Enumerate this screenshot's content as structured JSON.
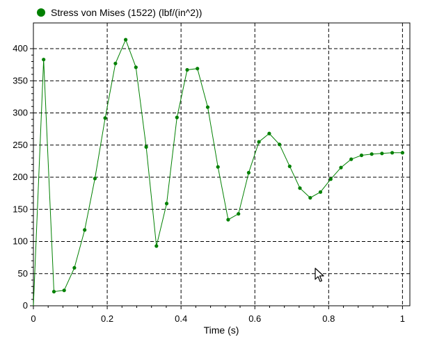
{
  "chart_data": {
    "type": "line",
    "xlabel": "Time (s)",
    "ylabel": "",
    "xlim": [
      0,
      1.02
    ],
    "ylim": [
      0,
      440
    ],
    "x_ticks": [
      0,
      0.2,
      0.4,
      0.6,
      0.8,
      1
    ],
    "x_tick_labels": [
      "0",
      "0.2",
      "0.4",
      "0.6",
      "0.8",
      "1"
    ],
    "y_ticks": [
      0,
      50,
      100,
      150,
      200,
      250,
      300,
      350,
      400
    ],
    "y_tick_labels": [
      "0",
      "50",
      "100",
      "150",
      "200",
      "250",
      "300",
      "350",
      "400"
    ],
    "grid": true,
    "legend_position": "top-left",
    "series": [
      {
        "name": "Stress von Mises (1522) (lbf/(in^2))",
        "color": "#008000",
        "x": [
          0,
          0.0278,
          0.0556,
          0.0833,
          0.1111,
          0.1389,
          0.1667,
          0.1944,
          0.2222,
          0.25,
          0.2778,
          0.3056,
          0.3333,
          0.3611,
          0.3889,
          0.4167,
          0.4444,
          0.4722,
          0.5,
          0.5278,
          0.5556,
          0.5833,
          0.6111,
          0.6389,
          0.6667,
          0.6944,
          0.7222,
          0.75,
          0.7778,
          0.8056,
          0.8333,
          0.8611,
          0.8889,
          0.9167,
          0.9444,
          0.9722,
          1.0
        ],
        "y": [
          0,
          383,
          22,
          24,
          59,
          118,
          198,
          292,
          377,
          414,
          371,
          247,
          93,
          159,
          293,
          367,
          369,
          309,
          216,
          134,
          143,
          207,
          255,
          268,
          251,
          217,
          183,
          168,
          177,
          197,
          215,
          228,
          234,
          236,
          237,
          238,
          238
        ]
      }
    ]
  },
  "cursor": {
    "icon": "mouse-pointer-icon"
  }
}
